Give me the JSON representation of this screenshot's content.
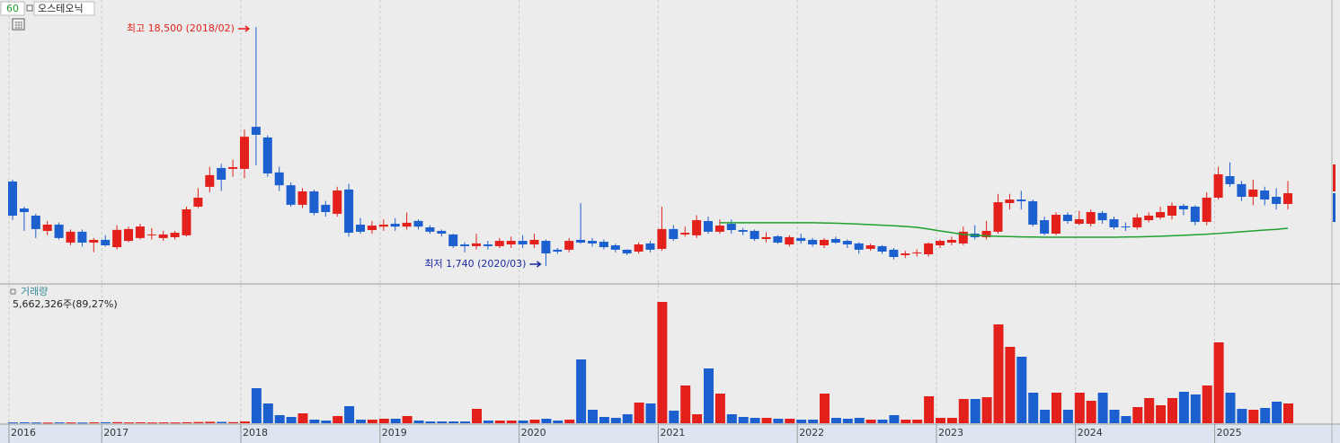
{
  "chart_data": {
    "type": "candlestick",
    "title": "오스테오닉",
    "period": "60",
    "max_label": "최고 18,500 (2018/02)",
    "min_label": "최저 1,740 (2020/03)",
    "volume_title": "거래량",
    "volume_label": "5,662,326주(89,27%)",
    "up_color": "#e3201b",
    "down_color": "#1c5fcf",
    "ma_color": "#1fa02f",
    "grid": true,
    "categories": [
      "2016",
      null,
      null,
      null,
      null,
      null,
      null,
      null,
      "2017",
      null,
      null,
      null,
      null,
      null,
      null,
      null,
      null,
      null,
      null,
      null,
      "2018",
      null,
      null,
      null,
      null,
      null,
      null,
      null,
      null,
      null,
      null,
      null,
      "2019",
      null,
      null,
      null,
      null,
      null,
      null,
      null,
      null,
      null,
      null,
      null,
      "2020",
      null,
      null,
      null,
      null,
      null,
      null,
      null,
      null,
      null,
      null,
      null,
      "2021",
      null,
      null,
      null,
      null,
      null,
      null,
      null,
      null,
      null,
      null,
      null,
      "2022",
      null,
      null,
      null,
      null,
      null,
      null,
      null,
      null,
      null,
      null,
      null,
      "2023",
      null,
      null,
      null,
      null,
      null,
      null,
      null,
      null,
      null,
      null,
      null,
      "2024",
      null,
      null,
      null,
      null,
      null,
      null,
      null,
      null,
      null,
      null,
      null,
      "2025",
      null,
      null,
      null,
      null,
      null,
      null
    ],
    "open": [
      7660,
      5770,
      5270,
      4200,
      4640,
      3380,
      4140,
      3380,
      3570,
      3060,
      3500,
      3700,
      3890,
      3700,
      3760,
      3890,
      5900,
      7290,
      8610,
      8550,
      8550,
      11500,
      10750,
      8300,
      7400,
      6030,
      6970,
      6030,
      5400,
      7100,
      4640,
      4260,
      4500,
      4700,
      4500,
      4900,
      4450,
      4200,
      3950,
      3250,
      3130,
      3250,
      3130,
      3250,
      3500,
      3250,
      3500,
      2880,
      2880,
      3570,
      3500,
      3440,
      3190,
      2880,
      2750,
      3320,
      2940,
      4330,
      3950,
      3890,
      4890,
      4140,
      4700,
      4260,
      4200,
      3630,
      3820,
      3250,
      3700,
      3570,
      3190,
      3630,
      3500,
      3320,
      2940,
      3130,
      2880,
      2500,
      2620,
      2560,
      3190,
      3380,
      3320,
      4010,
      3760,
      4140,
      6150,
      6400,
      6280,
      4950,
      4010,
      5330,
      4700,
      4700,
      5460,
      5020,
      4510,
      4450,
      4950,
      5140,
      5270,
      5960,
      5900,
      4830,
      6530,
      8040,
      7480,
      6590,
      7030,
      6590,
      6090
    ],
    "high": [
      7790,
      5900,
      5400,
      4900,
      4800,
      4300,
      4300,
      3700,
      3900,
      4600,
      4500,
      4700,
      4400,
      4200,
      4200,
      5900,
      7200,
      8700,
      8900,
      9200,
      11300,
      18500,
      10900,
      8700,
      7600,
      7200,
      7100,
      6300,
      7300,
      7500,
      5100,
      4900,
      5000,
      5100,
      5500,
      5000,
      4600,
      4300,
      4000,
      3400,
      4000,
      3500,
      3700,
      3800,
      3900,
      4000,
      3600,
      3000,
      3700,
      6150,
      3700,
      3600,
      3300,
      2900,
      3400,
      3500,
      5900,
      4600,
      4500,
      5300,
      5200,
      5000,
      5000,
      4400,
      4300,
      4100,
      3900,
      3900,
      4000,
      3700,
      3700,
      3800,
      3600,
      3400,
      3300,
      3200,
      3000,
      2800,
      2900,
      3400,
      3600,
      3800,
      4500,
      4600,
      4900,
      6800,
      6800,
      7000,
      6400,
      5200,
      5500,
      5500,
      5600,
      5700,
      5600,
      5200,
      4800,
      5400,
      5500,
      5900,
      6200,
      6100,
      6000,
      6900,
      8700,
      9000,
      7700,
      7800,
      7300,
      7200,
      7700
    ],
    "low": [
      4960,
      4200,
      3700,
      3900,
      3600,
      3200,
      3100,
      2700,
      3100,
      2900,
      3400,
      3600,
      3600,
      3500,
      3600,
      3800,
      5800,
      6900,
      7000,
      8000,
      7900,
      8800,
      8000,
      7000,
      5900,
      5800,
      5300,
      5200,
      5200,
      3800,
      4000,
      4000,
      4200,
      4200,
      4300,
      4300,
      4000,
      3800,
      3000,
      2700,
      2900,
      2900,
      3000,
      3000,
      3000,
      3000,
      1740,
      2600,
      2700,
      3300,
      3100,
      2900,
      2700,
      2500,
      2600,
      2700,
      2800,
      3500,
      3800,
      3700,
      4000,
      4000,
      4000,
      3900,
      3500,
      3400,
      3300,
      3100,
      3300,
      3100,
      3000,
      3300,
      3000,
      2600,
      2800,
      2600,
      2200,
      2300,
      2400,
      2400,
      3000,
      3200,
      3200,
      3600,
      3600,
      4000,
      5700,
      5700,
      4500,
      3900,
      3900,
      4700,
      4600,
      4500,
      4700,
      4300,
      4200,
      4300,
      4800,
      5000,
      5000,
      5300,
      4600,
      4600,
      6400,
      7300,
      6300,
      6000,
      6000,
      5700,
      5700
    ],
    "close": [
      5270,
      5520,
      4330,
      4640,
      3700,
      4140,
      3380,
      3570,
      3190,
      4270,
      4330,
      4510,
      3950,
      3950,
      4070,
      5710,
      6530,
      8110,
      7790,
      8670,
      10800,
      10940,
      8230,
      7400,
      6030,
      6970,
      5460,
      5520,
      7030,
      4070,
      4140,
      4570,
      4640,
      4500,
      4770,
      4500,
      4140,
      4010,
      3130,
      3130,
      3320,
      3130,
      3500,
      3500,
      3250,
      3570,
      2620,
      2750,
      3500,
      3380,
      3320,
      3060,
      2880,
      2620,
      3250,
      2880,
      4330,
      3630,
      4070,
      4950,
      4140,
      4570,
      4260,
      4140,
      3630,
      3760,
      3380,
      3760,
      3500,
      3250,
      3570,
      3380,
      3250,
      2880,
      3190,
      2750,
      2370,
      2620,
      2690,
      3320,
      3500,
      3570,
      4140,
      3760,
      4200,
      6210,
      6400,
      6280,
      4640,
      4010,
      5330,
      4890,
      5020,
      5520,
      4950,
      4450,
      4450,
      5140,
      5270,
      5520,
      5960,
      5710,
      4830,
      6530,
      8170,
      7480,
      6590,
      7100,
      6400,
      6090,
      6840
    ],
    "volume": [
      230000,
      260000,
      210000,
      190000,
      240000,
      220000,
      200000,
      250000,
      270000,
      310000,
      230000,
      260000,
      210000,
      240000,
      220000,
      280000,
      350000,
      420000,
      380000,
      300000,
      515000,
      10040000,
      5660000,
      2320000,
      1800000,
      2830000,
      1030000,
      770000,
      2060000,
      4890000,
      1030000,
      1030000,
      1290000,
      1290000,
      2060000,
      770000,
      515000,
      515000,
      515000,
      515000,
      4120000,
      770000,
      770000,
      770000,
      770000,
      1030000,
      1290000,
      770000,
      1030000,
      18270000,
      3860000,
      1800000,
      1540000,
      2570000,
      5920000,
      5660000,
      34750000,
      3600000,
      10810000,
      2570000,
      15700000,
      8490000,
      2570000,
      1800000,
      1540000,
      1540000,
      1290000,
      1290000,
      1030000,
      1030000,
      8490000,
      1540000,
      1290000,
      1540000,
      1030000,
      1030000,
      2320000,
      1030000,
      1030000,
      7720000,
      1540000,
      1540000,
      6950000,
      6950000,
      7460000,
      28310000,
      21880000,
      19050000,
      8750000,
      3860000,
      8750000,
      3860000,
      8750000,
      6440000,
      8750000,
      3860000,
      2060000,
      4630000,
      7210000,
      5150000,
      7210000,
      9010000,
      8240000,
      10810000,
      23170000,
      8750000,
      4120000,
      3860000,
      4380000,
      6180000,
      5662326
    ],
    "ma": [
      null,
      null,
      null,
      null,
      null,
      null,
      null,
      null,
      null,
      null,
      null,
      null,
      null,
      null,
      null,
      null,
      null,
      null,
      null,
      null,
      null,
      null,
      null,
      null,
      null,
      null,
      null,
      null,
      null,
      null,
      null,
      null,
      null,
      null,
      null,
      null,
      null,
      null,
      null,
      null,
      null,
      null,
      null,
      null,
      null,
      null,
      null,
      null,
      null,
      null,
      null,
      null,
      null,
      null,
      null,
      null,
      null,
      null,
      null,
      null,
      null,
      4770,
      4770,
      4770,
      4770,
      4770,
      4770,
      4770,
      4770,
      4770,
      4760,
      4740,
      4710,
      4680,
      4640,
      4600,
      4560,
      4510,
      4450,
      4330,
      4200,
      4080,
      3950,
      3890,
      3850,
      3820,
      3800,
      3780,
      3770,
      3760,
      3760,
      3760,
      3760,
      3760,
      3760,
      3760,
      3770,
      3780,
      3800,
      3830,
      3860,
      3890,
      3930,
      3970,
      4020,
      4080,
      4140,
      4200,
      4260,
      4310,
      4390
    ]
  }
}
